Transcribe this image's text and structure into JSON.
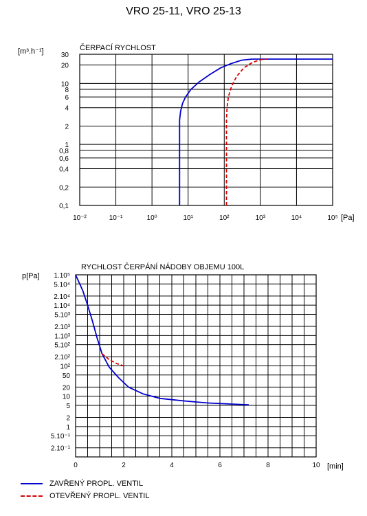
{
  "title": "VRO 25-11, VRO 25-13",
  "chart_data": [
    {
      "type": "line",
      "title": "ČERPACÍ RYCHLOST",
      "ylabel": "[m³.h⁻¹]",
      "xlabel": "[Pa]",
      "x_scale": "log",
      "y_scale": "log",
      "xlim": [
        0.01,
        100000
      ],
      "ylim": [
        0.1,
        30
      ],
      "x_ticks": [
        {
          "v": 0.01,
          "label": "10⁻²"
        },
        {
          "v": 0.1,
          "label": "10⁻¹"
        },
        {
          "v": 1,
          "label": "10⁰"
        },
        {
          "v": 10,
          "label": "10¹"
        },
        {
          "v": 100,
          "label": "10²"
        },
        {
          "v": 1000,
          "label": "10³"
        },
        {
          "v": 10000,
          "label": "10⁴"
        },
        {
          "v": 100000,
          "label": "10⁵"
        }
      ],
      "y_ticks": [
        {
          "v": 0.1,
          "label": "0,1"
        },
        {
          "v": 0.2,
          "label": "0,2"
        },
        {
          "v": 0.4,
          "label": "0,4"
        },
        {
          "v": 0.6,
          "label": "0,6"
        },
        {
          "v": 0.8,
          "label": "0,8"
        },
        {
          "v": 1,
          "label": "1"
        },
        {
          "v": 2,
          "label": "2"
        },
        {
          "v": 4,
          "label": "4"
        },
        {
          "v": 6,
          "label": "6"
        },
        {
          "v": 8,
          "label": "8"
        },
        {
          "v": 10,
          "label": "10"
        },
        {
          "v": 20,
          "label": "20"
        },
        {
          "v": 30,
          "label": "30"
        }
      ],
      "series": [
        {
          "name": "ZAVŘENÝ PROPL. VENTIL",
          "color": "#0000cc",
          "dash": "solid",
          "points": [
            [
              5.8,
              0.1
            ],
            [
              5.8,
              1
            ],
            [
              5.8,
              2.5
            ],
            [
              6.2,
              3.5
            ],
            [
              7,
              4.7
            ],
            [
              8.5,
              6
            ],
            [
              12,
              8
            ],
            [
              20,
              10.5
            ],
            [
              40,
              14
            ],
            [
              80,
              18
            ],
            [
              150,
              21
            ],
            [
              300,
              24
            ],
            [
              600,
              25
            ],
            [
              1000,
              25
            ],
            [
              100000,
              25
            ]
          ]
        },
        {
          "name": "OTEVŘENÝ PROPL. VENTIL",
          "color": "#dd0000",
          "dash": "dashed",
          "points": [
            [
              115,
              0.1
            ],
            [
              115,
              1
            ],
            [
              115,
              2.5
            ],
            [
              120,
              4
            ],
            [
              130,
              6
            ],
            [
              160,
              9
            ],
            [
              220,
              13
            ],
            [
              350,
              18
            ],
            [
              600,
              22
            ],
            [
              1000,
              24.5
            ],
            [
              1500,
              25
            ]
          ]
        }
      ]
    },
    {
      "type": "line",
      "title": "RYCHLOST ČERPÁNÍ NÁDOBY OBJEMU 100L",
      "ylabel": "p[Pa]",
      "xlabel": "[min]",
      "x_scale": "linear",
      "y_scale": "log",
      "xlim": [
        0,
        10
      ],
      "ylim": [
        0.1,
        100000
      ],
      "x_ticks": [
        {
          "v": 0,
          "label": "0"
        },
        {
          "v": 2,
          "label": "2"
        },
        {
          "v": 4,
          "label": "4"
        },
        {
          "v": 6,
          "label": "6"
        },
        {
          "v": 8,
          "label": "8"
        },
        {
          "v": 10,
          "label": "10"
        }
      ],
      "y_ticks": [
        {
          "v": 100000,
          "label": "1.10⁵"
        },
        {
          "v": 50000,
          "label": "5.10⁴"
        },
        {
          "v": 20000,
          "label": "2.10⁴"
        },
        {
          "v": 10000,
          "label": "1.10⁴"
        },
        {
          "v": 5000,
          "label": "5.10³"
        },
        {
          "v": 2000,
          "label": "2.10³"
        },
        {
          "v": 1000,
          "label": "1.10³"
        },
        {
          "v": 500,
          "label": "5.10²"
        },
        {
          "v": 200,
          "label": "2.10²"
        },
        {
          "v": 100,
          "label": "10²"
        },
        {
          "v": 50,
          "label": "50"
        },
        {
          "v": 20,
          "label": "20"
        },
        {
          "v": 10,
          "label": "10"
        },
        {
          "v": 5,
          "label": "5"
        },
        {
          "v": 2,
          "label": "2"
        },
        {
          "v": 1,
          "label": "1"
        },
        {
          "v": 0.5,
          "label": "5.10⁻¹"
        },
        {
          "v": 0.2,
          "label": "2.10⁻¹"
        }
      ],
      "series": [
        {
          "name": "ZAVŘENÝ PROPL. VENTIL",
          "color": "#0000cc",
          "dash": "solid",
          "points": [
            [
              0,
              100000
            ],
            [
              0.3,
              30000
            ],
            [
              0.5,
              10000
            ],
            [
              0.7,
              3000
            ],
            [
              0.9,
              800
            ],
            [
              1.1,
              250
            ],
            [
              1.4,
              90
            ],
            [
              1.8,
              40
            ],
            [
              2.2,
              20
            ],
            [
              2.8,
              12
            ],
            [
              3.5,
              8.5
            ],
            [
              4.5,
              7
            ],
            [
              5.5,
              6
            ],
            [
              6.5,
              5.5
            ],
            [
              7.2,
              5.2
            ]
          ]
        },
        {
          "name": "OTEVŘENÝ PROPL. VENTIL",
          "color": "#dd0000",
          "dash": "dashed",
          "points": [
            [
              1.1,
              250
            ],
            [
              1.4,
              160
            ],
            [
              1.7,
              120
            ],
            [
              2,
              100
            ]
          ]
        }
      ]
    }
  ],
  "legend": [
    {
      "label": "ZAVŘENÝ PROPL. VENTIL",
      "color": "#0000cc",
      "dash": "solid"
    },
    {
      "label": "OTEVŘENÝ PROPL. VENTIL",
      "color": "#dd0000",
      "dash": "dashed"
    }
  ]
}
